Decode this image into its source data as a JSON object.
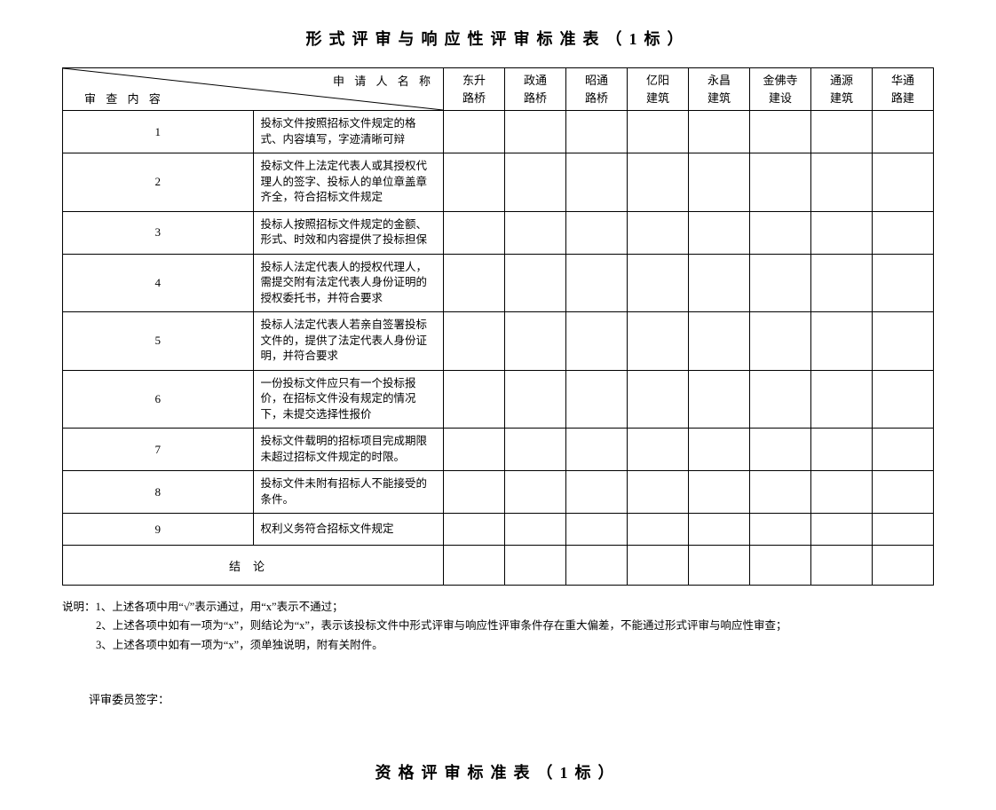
{
  "title": "形式评审与响应性评审标准表（1标）",
  "header": {
    "applicant_label": "申 请 人 名 称",
    "review_label": "审 查 内 容",
    "companies": [
      "东升\n路桥",
      "政通\n路桥",
      "昭通\n路桥",
      "亿阳\n建筑",
      "永昌\n建筑",
      "金佛寺\n建设",
      "通源\n建筑",
      "华通\n路建"
    ]
  },
  "rows": [
    {
      "n": "1",
      "text": "投标文件按照招标文件规定的格式、内容填写，字迹清晰可辩"
    },
    {
      "n": "2",
      "text": "投标文件上法定代表人或其授权代理人的签字、投标人的单位章盖章齐全，符合招标文件规定"
    },
    {
      "n": "3",
      "text": "投标人按照招标文件规定的金额、形式、时效和内容提供了投标担保"
    },
    {
      "n": "4",
      "text": "投标人法定代表人的授权代理人，需提交附有法定代表人身份证明的授权委托书，并符合要求"
    },
    {
      "n": "5",
      "text": "投标人法定代表人若亲自签署投标文件的，提供了法定代表人身份证明，并符合要求"
    },
    {
      "n": "6",
      "text": "一份投标文件应只有一个投标报价，在招标文件没有规定的情况下，未提交选择性报价"
    },
    {
      "n": "7",
      "text": "投标文件载明的招标项目完成期限未超过招标文件规定的时限。"
    },
    {
      "n": "8",
      "text": "投标文件未附有招标人不能接受的条件。"
    },
    {
      "n": "9",
      "text": "权利义务符合招标文件规定"
    }
  ],
  "conclusion_label": "结论",
  "notes": {
    "prefix": "说明：",
    "lines": [
      "1、上述各项中用“√”表示通过，用“x”表示不通过；",
      "2、上述各项中如有一项为“x”，则结论为“x”，表示该投标文件中形式评审与响应性评审条件存在重大偏差，不能通过形式评审与响应性审查；",
      "3、上述各项中如有一项为“x”，须单独说明，附有关附件。"
    ]
  },
  "signature_label": "评审委员签字：",
  "title2": "资格评审标准表（1标）"
}
